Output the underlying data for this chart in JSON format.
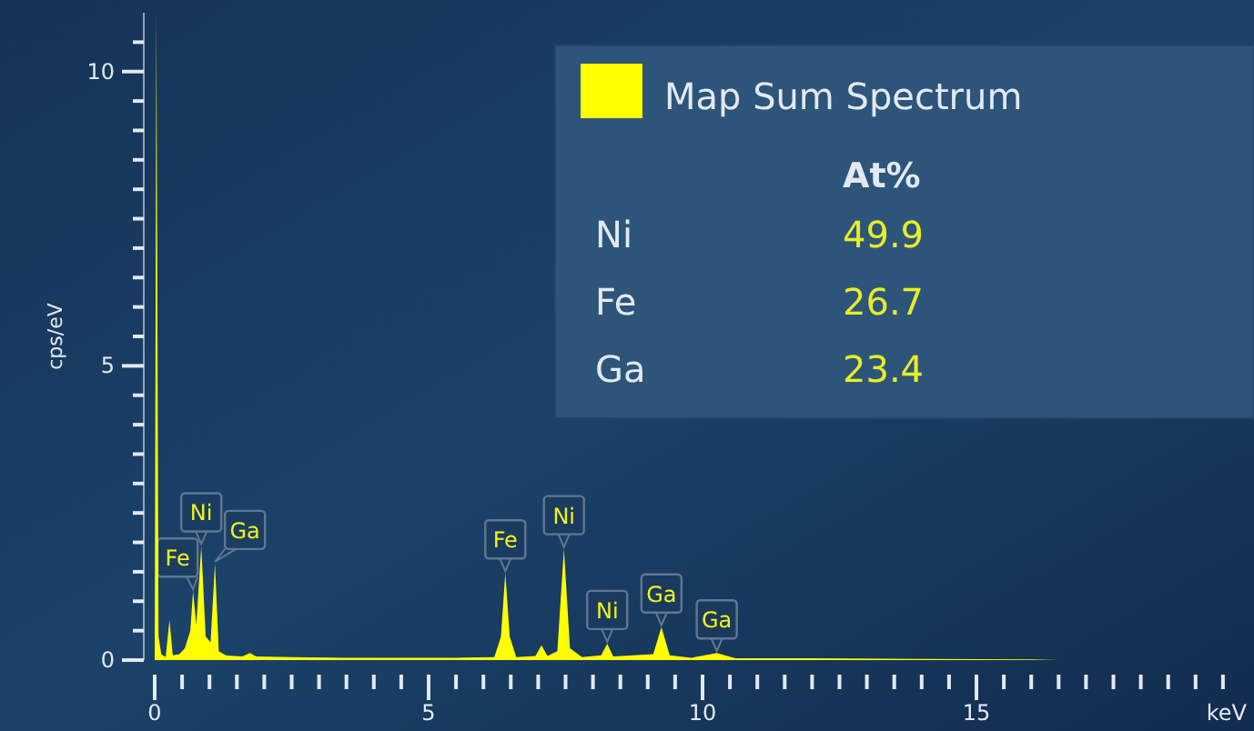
{
  "chart_data": {
    "type": "area",
    "xlabel": "keV",
    "ylabel": "cps/eV",
    "xlim": [
      0,
      20
    ],
    "ylim": [
      0,
      11
    ],
    "xticks": [
      0,
      {
        "value": 0.5,
        "label": null
      },
      {
        "value": 1,
        "label": null
      },
      {
        "value": 1.5,
        "label": null
      },
      {
        "value": 2,
        "label": null
      },
      {
        "value": 2.5,
        "label": null
      },
      {
        "value": 3,
        "label": null
      },
      {
        "value": 3.5,
        "label": null
      },
      {
        "value": 4,
        "label": null
      },
      {
        "value": 4.5,
        "label": null
      },
      5,
      {
        "value": 5.5,
        "label": null
      },
      {
        "value": 6,
        "label": null
      },
      {
        "value": 6.5,
        "label": null
      },
      {
        "value": 7,
        "label": null
      },
      {
        "value": 7.5,
        "label": null
      },
      {
        "value": 8,
        "label": null
      },
      {
        "value": 8.5,
        "label": null
      },
      {
        "value": 9,
        "label": null
      },
      {
        "value": 9.5,
        "label": null
      },
      10,
      {
        "value": 10.5,
        "label": null
      },
      {
        "value": 11,
        "label": null
      },
      {
        "value": 11.5,
        "label": null
      },
      {
        "value": 12,
        "label": null
      },
      {
        "value": 12.5,
        "label": null
      },
      {
        "value": 13,
        "label": null
      },
      {
        "value": 13.5,
        "label": null
      },
      {
        "value": 14,
        "label": null
      },
      {
        "value": 14.5,
        "label": null
      },
      15,
      {
        "value": 15.5,
        "label": null
      },
      {
        "value": 16,
        "label": null
      },
      {
        "value": 16.5,
        "label": null
      },
      {
        "value": 17,
        "label": null
      },
      {
        "value": 17.5,
        "label": null
      },
      {
        "value": 18,
        "label": null
      },
      {
        "value": 18.5,
        "label": null
      },
      {
        "value": 19,
        "label": null
      },
      {
        "value": 19.5,
        "label": null
      }
    ],
    "yticks": [
      0,
      {
        "value": 0.5,
        "label": null
      },
      {
        "value": 1,
        "label": null
      },
      {
        "value": 1.5,
        "label": null
      },
      {
        "value": 2,
        "label": null
      },
      {
        "value": 2.5,
        "label": null
      },
      {
        "value": 3,
        "label": null
      },
      {
        "value": 3.5,
        "label": null
      },
      {
        "value": 4,
        "label": null
      },
      {
        "value": 4.5,
        "label": null
      },
      5,
      {
        "value": 5.5,
        "label": null
      },
      {
        "value": 6,
        "label": null
      },
      {
        "value": 6.5,
        "label": null
      },
      {
        "value": 7,
        "label": null
      },
      {
        "value": 7.5,
        "label": null
      },
      {
        "value": 8,
        "label": null
      },
      {
        "value": 8.5,
        "label": null
      },
      {
        "value": 9,
        "label": null
      },
      {
        "value": 9.5,
        "label": null
      },
      10,
      {
        "value": 10.5,
        "label": null
      }
    ],
    "grid": false,
    "legend": "top right",
    "series": [
      {
        "name": "Map Sum Spectrum",
        "color": "#ffff00",
        "x": [
          0,
          0.03,
          0.07,
          0.12,
          0.2,
          0.27,
          0.33,
          0.45,
          0.55,
          0.65,
          0.7,
          0.76,
          0.85,
          0.93,
          1.02,
          1.1,
          1.17,
          1.3,
          1.6,
          1.74,
          1.85,
          2.5,
          3.5,
          4.5,
          5.5,
          6.2,
          6.32,
          6.4,
          6.48,
          6.6,
          6.95,
          7.06,
          7.17,
          7.35,
          7.47,
          7.58,
          7.8,
          8.15,
          8.26,
          8.37,
          9.1,
          9.25,
          9.4,
          9.8,
          10.26,
          10.6,
          12,
          14,
          16,
          16.5
        ],
        "values": [
          0,
          11,
          0.4,
          0.1,
          0.05,
          0.68,
          0.08,
          0.1,
          0.2,
          0.5,
          1.17,
          0.6,
          1.94,
          0.4,
          0.3,
          1.64,
          0.15,
          0.08,
          0.06,
          0.12,
          0.06,
          0.05,
          0.04,
          0.04,
          0.04,
          0.05,
          0.4,
          1.48,
          0.4,
          0.05,
          0.07,
          0.25,
          0.07,
          0.15,
          1.89,
          0.2,
          0.05,
          0.08,
          0.28,
          0.06,
          0.1,
          0.56,
          0.08,
          0.04,
          0.12,
          0.03,
          0.03,
          0.02,
          0.01,
          0
        ]
      }
    ],
    "annotations": [
      "At%",
      "Ni",
      "49.9",
      "Fe",
      "26.7",
      "Ga",
      "23.4",
      {
        "text": "Fe",
        "x": 0.7,
        "y": 1.17
      },
      {
        "text": "Ni",
        "x": 0.85,
        "y": 1.94
      },
      {
        "text": "Ga",
        "x": 1.1,
        "y": 1.64
      },
      {
        "text": "Fe",
        "x": 6.4,
        "y": 1.48
      },
      {
        "text": "Ni",
        "x": 7.47,
        "y": 1.89
      },
      {
        "text": "Ni",
        "x": 8.26,
        "y": 0.28
      },
      {
        "text": "Ga",
        "x": 9.25,
        "y": 0.56
      },
      {
        "text": "Ga",
        "x": 10.26,
        "y": 0.12
      }
    ]
  }
}
